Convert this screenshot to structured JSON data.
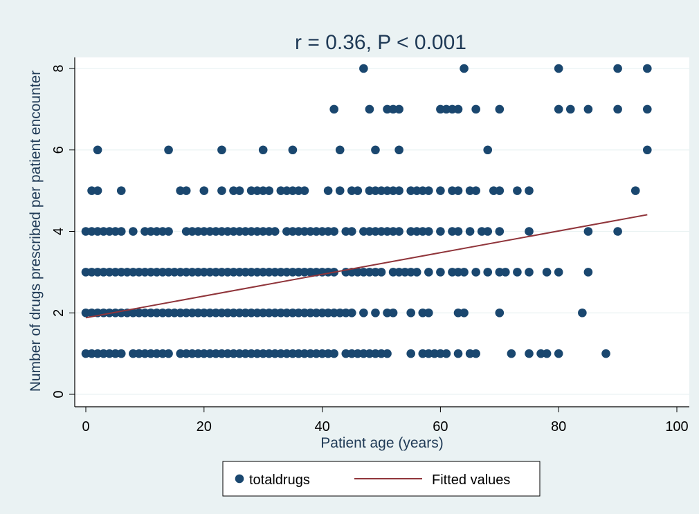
{
  "chart_data": {
    "type": "scatter",
    "title": "r = 0.36, P < 0.001",
    "xlabel": "Patient age (years)",
    "ylabel": "Number of drugs prescribed per patient encounter",
    "xlim": [
      0,
      100
    ],
    "ylim": [
      0,
      8
    ],
    "x_ticks": [
      0,
      20,
      40,
      60,
      80,
      100
    ],
    "y_ticks": [
      0,
      2,
      4,
      6,
      8
    ],
    "x_tick_labels": [
      "0",
      "20",
      "40",
      "60",
      "80",
      "100"
    ],
    "y_tick_labels": [
      "0",
      "2",
      "4",
      "6",
      "8"
    ],
    "grid": "horizontal",
    "legend_position": "bottom",
    "colors": {
      "plot_background": "#ffffff",
      "outer_background": "#eaf2f3",
      "grid": "#eaf2f3",
      "points": "#1a476f",
      "fitted_line": "#90353b",
      "text": "#1f3a56"
    },
    "series": [
      {
        "name": "totaldrugs",
        "type": "scatter",
        "color": "#1a476f",
        "y_levels": [
          {
            "y": 8,
            "x": [
              47,
              64,
              80,
              90,
              95
            ]
          },
          {
            "y": 7,
            "x": [
              42,
              48,
              51,
              52,
              53,
              60,
              61,
              62,
              63,
              66,
              70,
              80,
              82,
              85,
              90,
              95
            ]
          },
          {
            "y": 6,
            "x": [
              2,
              14,
              23,
              30,
              35,
              43,
              49,
              53,
              68,
              95
            ]
          },
          {
            "y": 5,
            "x": [
              1,
              2,
              6,
              16,
              17,
              20,
              23,
              25,
              26,
              28,
              29,
              30,
              31,
              33,
              34,
              35,
              36,
              37,
              41,
              43,
              45,
              46,
              48,
              49,
              50,
              51,
              52,
              53,
              55,
              56,
              57,
              58,
              60,
              62,
              63,
              65,
              66,
              69,
              70,
              73,
              75,
              93
            ]
          },
          {
            "y": 4,
            "x": [
              0,
              1,
              2,
              3,
              4,
              5,
              6,
              8,
              10,
              11,
              12,
              13,
              14,
              17,
              18,
              19,
              20,
              21,
              22,
              23,
              24,
              25,
              26,
              27,
              28,
              29,
              30,
              31,
              32,
              34,
              35,
              36,
              37,
              38,
              39,
              40,
              41,
              42,
              44,
              45,
              47,
              48,
              49,
              50,
              51,
              52,
              53,
              55,
              56,
              57,
              58,
              60,
              62,
              63,
              65,
              67,
              68,
              70,
              75,
              85,
              90
            ]
          },
          {
            "y": 3,
            "x": [
              0,
              1,
              2,
              3,
              4,
              5,
              6,
              7,
              8,
              9,
              10,
              11,
              12,
              13,
              14,
              15,
              16,
              17,
              18,
              19,
              20,
              21,
              22,
              23,
              24,
              25,
              26,
              27,
              28,
              29,
              30,
              31,
              32,
              33,
              34,
              35,
              36,
              37,
              38,
              39,
              40,
              41,
              42,
              44,
              45,
              46,
              47,
              48,
              49,
              50,
              52,
              53,
              54,
              55,
              56,
              58,
              60,
              62,
              63,
              64,
              66,
              68,
              70,
              71,
              73,
              75,
              78,
              80,
              85
            ]
          },
          {
            "y": 2,
            "x": [
              0,
              1,
              2,
              3,
              4,
              5,
              6,
              7,
              8,
              9,
              10,
              11,
              12,
              13,
              14,
              15,
              16,
              17,
              18,
              19,
              20,
              21,
              22,
              23,
              24,
              25,
              26,
              27,
              28,
              29,
              30,
              31,
              32,
              33,
              34,
              35,
              36,
              37,
              38,
              39,
              40,
              41,
              42,
              43,
              44,
              45,
              47,
              49,
              51,
              52,
              55,
              57,
              58,
              63,
              64,
              70,
              84
            ]
          },
          {
            "y": 1,
            "x": [
              0,
              1,
              2,
              3,
              4,
              5,
              6,
              8,
              9,
              10,
              11,
              12,
              13,
              14,
              16,
              17,
              18,
              19,
              20,
              21,
              22,
              23,
              24,
              25,
              26,
              27,
              28,
              29,
              30,
              31,
              32,
              33,
              34,
              35,
              36,
              37,
              38,
              39,
              40,
              41,
              42,
              44,
              45,
              46,
              47,
              48,
              49,
              50,
              51,
              55,
              57,
              58,
              59,
              60,
              61,
              63,
              65,
              66,
              72,
              75,
              77,
              78,
              80,
              88
            ]
          }
        ]
      },
      {
        "name": "Fitted values",
        "type": "line",
        "color": "#90353b",
        "points": [
          [
            0,
            1.88
          ],
          [
            95,
            4.41
          ]
        ]
      }
    ]
  }
}
